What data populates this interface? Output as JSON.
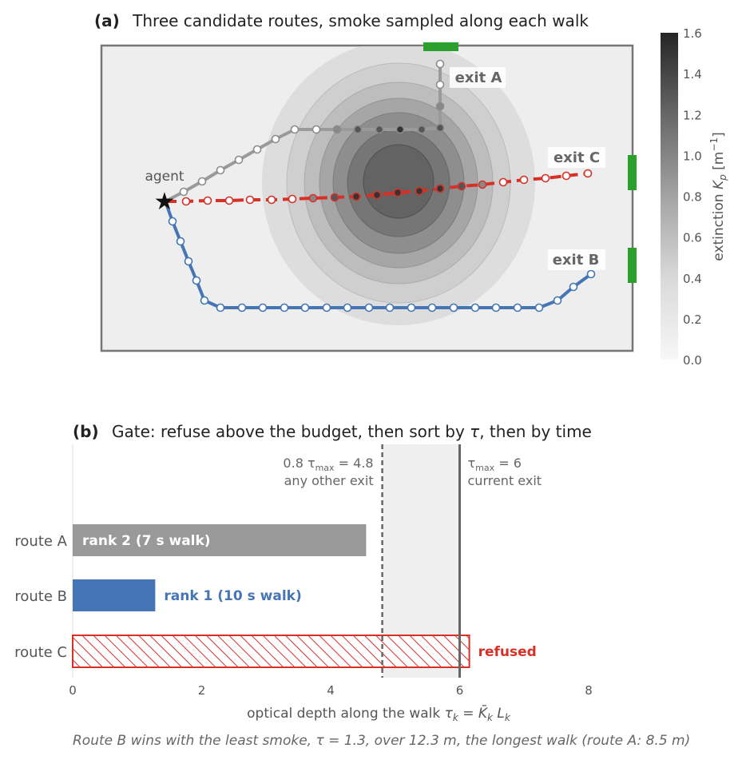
{
  "chart_data": [
    {
      "type": "heatmap",
      "panel_label": "(a)",
      "title": "Three candidate routes, smoke sampled along each walk",
      "colorbar": {
        "label_main": "extinction ",
        "label_sym": "K",
        "label_sub": "p",
        "label_unit_open": " [m",
        "label_sup": "−1",
        "label_unit_close": "]",
        "min": 0,
        "max": 1.6,
        "ticks": [
          "0.0",
          "0.2",
          "0.4",
          "0.6",
          "0.8",
          "1.0",
          "1.2",
          "1.4",
          "1.6"
        ]
      },
      "labels": {
        "agent": "agent",
        "exit_a": "exit A",
        "exit_b": "exit B",
        "exit_c": "exit C"
      },
      "colors": {
        "route_a": "#8c8c8c",
        "route_b": "#4575b4",
        "route_c": "#d73027",
        "exit": "#2ca02c"
      },
      "routes": [
        {
          "name": "route A",
          "legend_off": true
        },
        {
          "name": "route B",
          "legend_off": true
        },
        {
          "name": "route C",
          "legend_off": true
        }
      ]
    },
    {
      "type": "bar",
      "orientation": "horizontal",
      "panel_label": "(b)",
      "title_main": "Gate: refuse above the budget, then sort by ",
      "title_sym": "τ",
      "title_tail": ", then by time",
      "categories": [
        "route A",
        "route B",
        "route C"
      ],
      "values": [
        4.55,
        1.28,
        6.15
      ],
      "colors": [
        "#999999",
        "#4575b4",
        "#d73027"
      ],
      "bar_labels": [
        "rank 2   (7 s walk)",
        "rank 1   (10 s walk)",
        "refused"
      ],
      "xlim": [
        0,
        8
      ],
      "xticks": [
        "0",
        "2",
        "4",
        "6",
        "8"
      ],
      "xlabel_main": "optical depth along the walk  ",
      "xlabel_formula": "τ",
      "xlabel_k": "k",
      "xlabel_eq": " = ",
      "xlabel_kbar": "K̄",
      "xlabel_kbar_sub": "k",
      "xlabel_l": " L",
      "xlabel_l_sub": "k",
      "thresholds": [
        {
          "value": 4.8,
          "style": "dashed",
          "line1_pre": "0.8 τ",
          "line1_sub": "max",
          "line1_post": " = 4.8",
          "line2": "any other exit"
        },
        {
          "value": 6.0,
          "style": "solid",
          "line1_pre": "τ",
          "line1_sub": "max",
          "line1_post": " = 6",
          "line2": "current exit"
        }
      ]
    }
  ],
  "caption": "Route B wins with the least smoke, τ = 1.3, over 12.3 m, the longest walk (route A: 8.5 m)"
}
